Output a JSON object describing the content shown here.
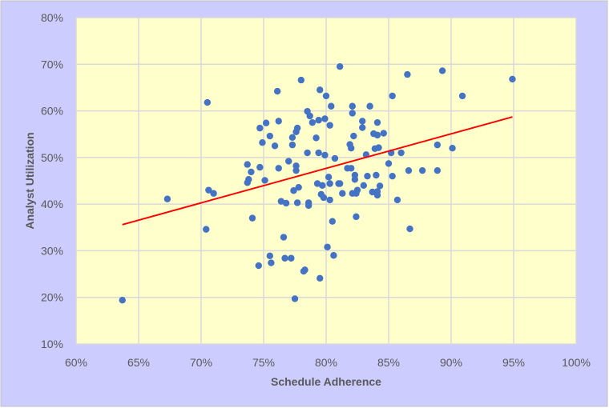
{
  "chart_data": {
    "type": "scatter",
    "title": "",
    "xlabel": "Schedule Adherence",
    "ylabel": "Analyst Utilization",
    "xlim": [
      60,
      100
    ],
    "ylim": [
      10,
      80
    ],
    "x_ticks": [
      "60%",
      "65%",
      "70%",
      "75%",
      "80%",
      "85%",
      "90%",
      "95%",
      "100%"
    ],
    "y_ticks": [
      "10%",
      "20%",
      "30%",
      "40%",
      "50%",
      "60%",
      "70%",
      "80%"
    ],
    "grid": true,
    "legend": "none",
    "colors": {
      "points": "#4472c4",
      "trendline": "#ff0000",
      "plot_bg": "#ffffcc",
      "chart_bg": "#ccccff",
      "grid": "#d9d9d9"
    },
    "trendline": {
      "type": "linear",
      "from": [
        63.7,
        35.6
      ],
      "to": [
        94.9,
        58.7
      ]
    },
    "points": [
      [
        81.1,
        69.5
      ],
      [
        86.5,
        67.8
      ],
      [
        78.0,
        66.6
      ],
      [
        76.1,
        64.2
      ],
      [
        79.5,
        64.5
      ],
      [
        80.0,
        63.2
      ],
      [
        85.3,
        63.2
      ],
      [
        80.4,
        61.0
      ],
      [
        82.1,
        61.0
      ],
      [
        83.5,
        61.0
      ],
      [
        82.1,
        59.5
      ],
      [
        78.5,
        59.9
      ],
      [
        78.7,
        58.9
      ],
      [
        78.9,
        57.5
      ],
      [
        79.4,
        58.0
      ],
      [
        79.9,
        58.3
      ],
      [
        80.3,
        56.9
      ],
      [
        82.9,
        57.8
      ],
      [
        82.9,
        56.4
      ],
      [
        84.1,
        57.5
      ],
      [
        75.2,
        57.4
      ],
      [
        74.7,
        56.3
      ],
      [
        76.2,
        57.8
      ],
      [
        77.7,
        56.3
      ],
      [
        77.6,
        55.5
      ],
      [
        77.3,
        54.3
      ],
      [
        75.5,
        54.6
      ],
      [
        74.9,
        53.2
      ],
      [
        75.9,
        52.5
      ],
      [
        77.3,
        52.7
      ],
      [
        79.2,
        54.2
      ],
      [
        82.2,
        54.6
      ],
      [
        83.8,
        55.1
      ],
      [
        84.1,
        54.8
      ],
      [
        84.6,
        55.2
      ],
      [
        81.9,
        52.8
      ],
      [
        82.0,
        52.0
      ],
      [
        83.9,
        51.9
      ],
      [
        84.2,
        52.1
      ],
      [
        78.5,
        51.0
      ],
      [
        79.4,
        51.0
      ],
      [
        79.9,
        50.5
      ],
      [
        80.7,
        49.8
      ],
      [
        83.2,
        50.6
      ],
      [
        85.2,
        51.0
      ],
      [
        86.0,
        51.0
      ],
      [
        73.7,
        48.5
      ],
      [
        74.0,
        46.9
      ],
      [
        74.7,
        47.9
      ],
      [
        76.2,
        47.7
      ],
      [
        77.0,
        49.2
      ],
      [
        77.6,
        48.2
      ],
      [
        77.6,
        47.2
      ],
      [
        73.8,
        45.3
      ],
      [
        73.7,
        44.6
      ],
      [
        75.1,
        45.1
      ],
      [
        81.7,
        47.7
      ],
      [
        82.0,
        47.7
      ],
      [
        85.0,
        48.7
      ],
      [
        82.3,
        46.2
      ],
      [
        82.3,
        45.3
      ],
      [
        83.3,
        46.0
      ],
      [
        84.0,
        46.2
      ],
      [
        85.3,
        46.0
      ],
      [
        86.6,
        47.2
      ],
      [
        87.7,
        47.2
      ],
      [
        80.2,
        45.8
      ],
      [
        79.3,
        44.4
      ],
      [
        79.7,
        44.0
      ],
      [
        80.3,
        44.4
      ],
      [
        81.0,
        44.4
      ],
      [
        81.1,
        44.4
      ],
      [
        83.0,
        44.0
      ],
      [
        84.3,
        43.9
      ],
      [
        82.5,
        43.0
      ],
      [
        82.1,
        42.3
      ],
      [
        82.4,
        42.3
      ],
      [
        83.7,
        42.6
      ],
      [
        84.1,
        42.7
      ],
      [
        84.1,
        41.9
      ],
      [
        81.3,
        42.3
      ],
      [
        77.8,
        43.6
      ],
      [
        77.4,
        42.9
      ],
      [
        79.6,
        42.1
      ],
      [
        79.8,
        41.4
      ],
      [
        80.3,
        40.9
      ],
      [
        76.4,
        40.6
      ],
      [
        76.8,
        40.2
      ],
      [
        77.7,
        40.3
      ],
      [
        78.6,
        40.3
      ],
      [
        78.6,
        39.7
      ],
      [
        85.7,
        40.9
      ],
      [
        74.1,
        37.0
      ],
      [
        82.4,
        37.3
      ],
      [
        80.5,
        36.3
      ],
      [
        86.7,
        34.7
      ],
      [
        76.6,
        32.9
      ],
      [
        80.1,
        30.8
      ],
      [
        80.6,
        29.0
      ],
      [
        75.5,
        28.9
      ],
      [
        76.7,
        28.4
      ],
      [
        77.2,
        28.4
      ],
      [
        75.6,
        27.4
      ],
      [
        74.6,
        26.8
      ],
      [
        78.2,
        25.6
      ],
      [
        78.3,
        25.9
      ],
      [
        79.5,
        24.1
      ],
      [
        77.5,
        19.7
      ],
      [
        63.7,
        19.4
      ],
      [
        67.3,
        41.1
      ],
      [
        70.5,
        61.8
      ],
      [
        70.6,
        43.0
      ],
      [
        71.0,
        42.3
      ],
      [
        70.4,
        34.6
      ],
      [
        89.3,
        68.6
      ],
      [
        94.9,
        66.8
      ],
      [
        90.9,
        63.2
      ],
      [
        88.9,
        52.7
      ],
      [
        90.1,
        52.0
      ],
      [
        88.9,
        47.2
      ]
    ]
  }
}
